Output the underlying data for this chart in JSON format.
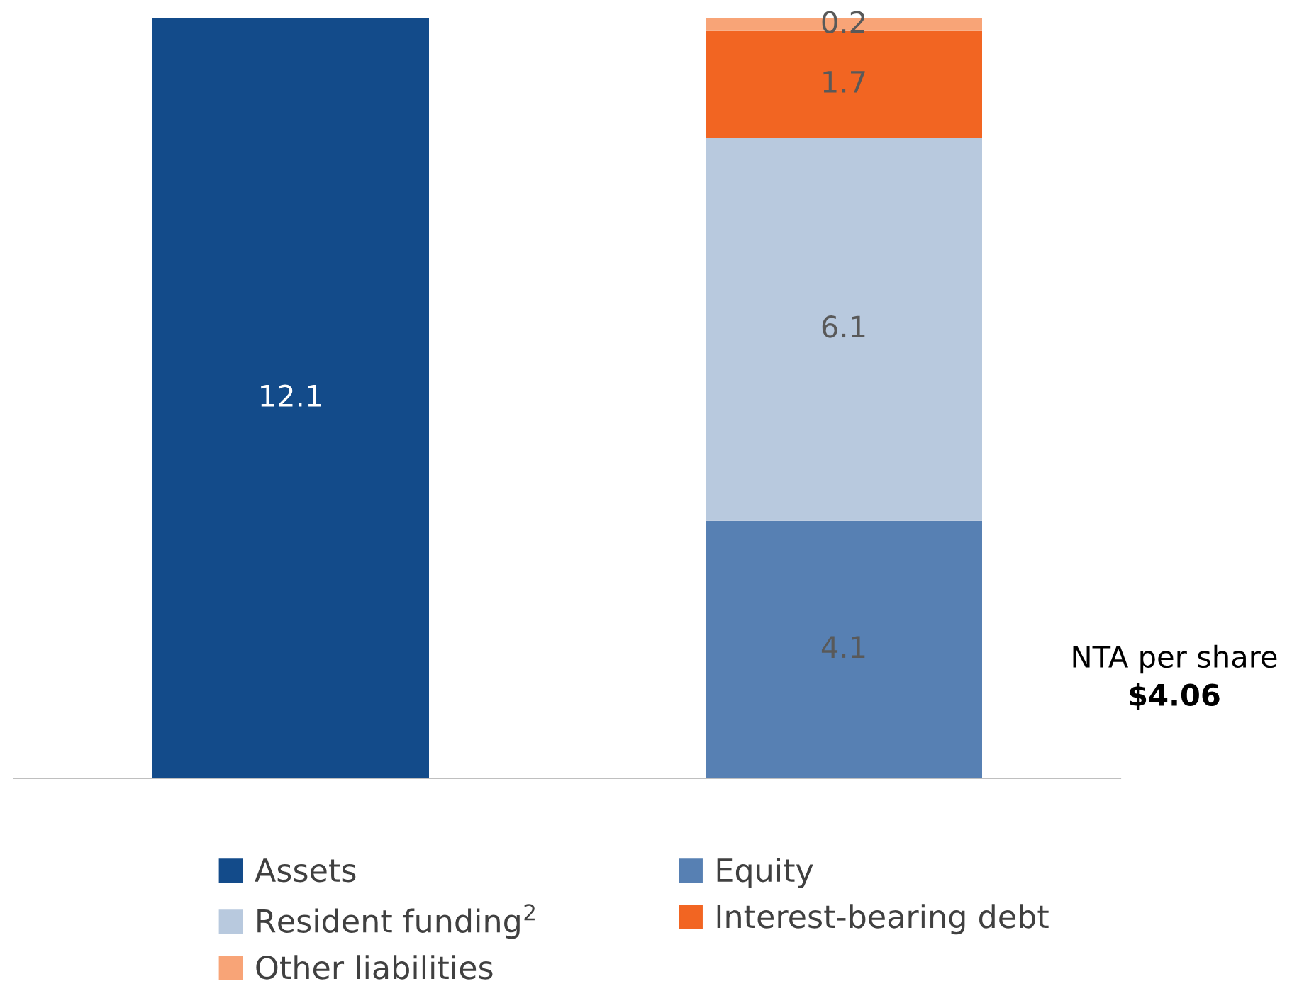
{
  "chart_data": {
    "type": "bar",
    "stacked": true,
    "categories": [
      null,
      null
    ],
    "data_labels": true,
    "legend": "bottom",
    "series": [
      {
        "name": "Assets",
        "color": "#134b8a",
        "values": [
          12.1,
          null
        ]
      },
      {
        "name": "Equity",
        "color": "#5780b3",
        "values": [
          null,
          4.1
        ]
      },
      {
        "name": "Resident funding$^{2}$",
        "color": "#b8c9de",
        "values": [
          null,
          6.1
        ]
      },
      {
        "name": "Interest-bearing debt",
        "color": "#f26522",
        "values": [
          null,
          1.7
        ]
      },
      {
        "name": "Other liabilities",
        "color": "#f8a477",
        "values": [
          null,
          0.2
        ]
      }
    ],
    "annotations": [
      "NTA per share",
      "$4.06"
    ]
  }
}
